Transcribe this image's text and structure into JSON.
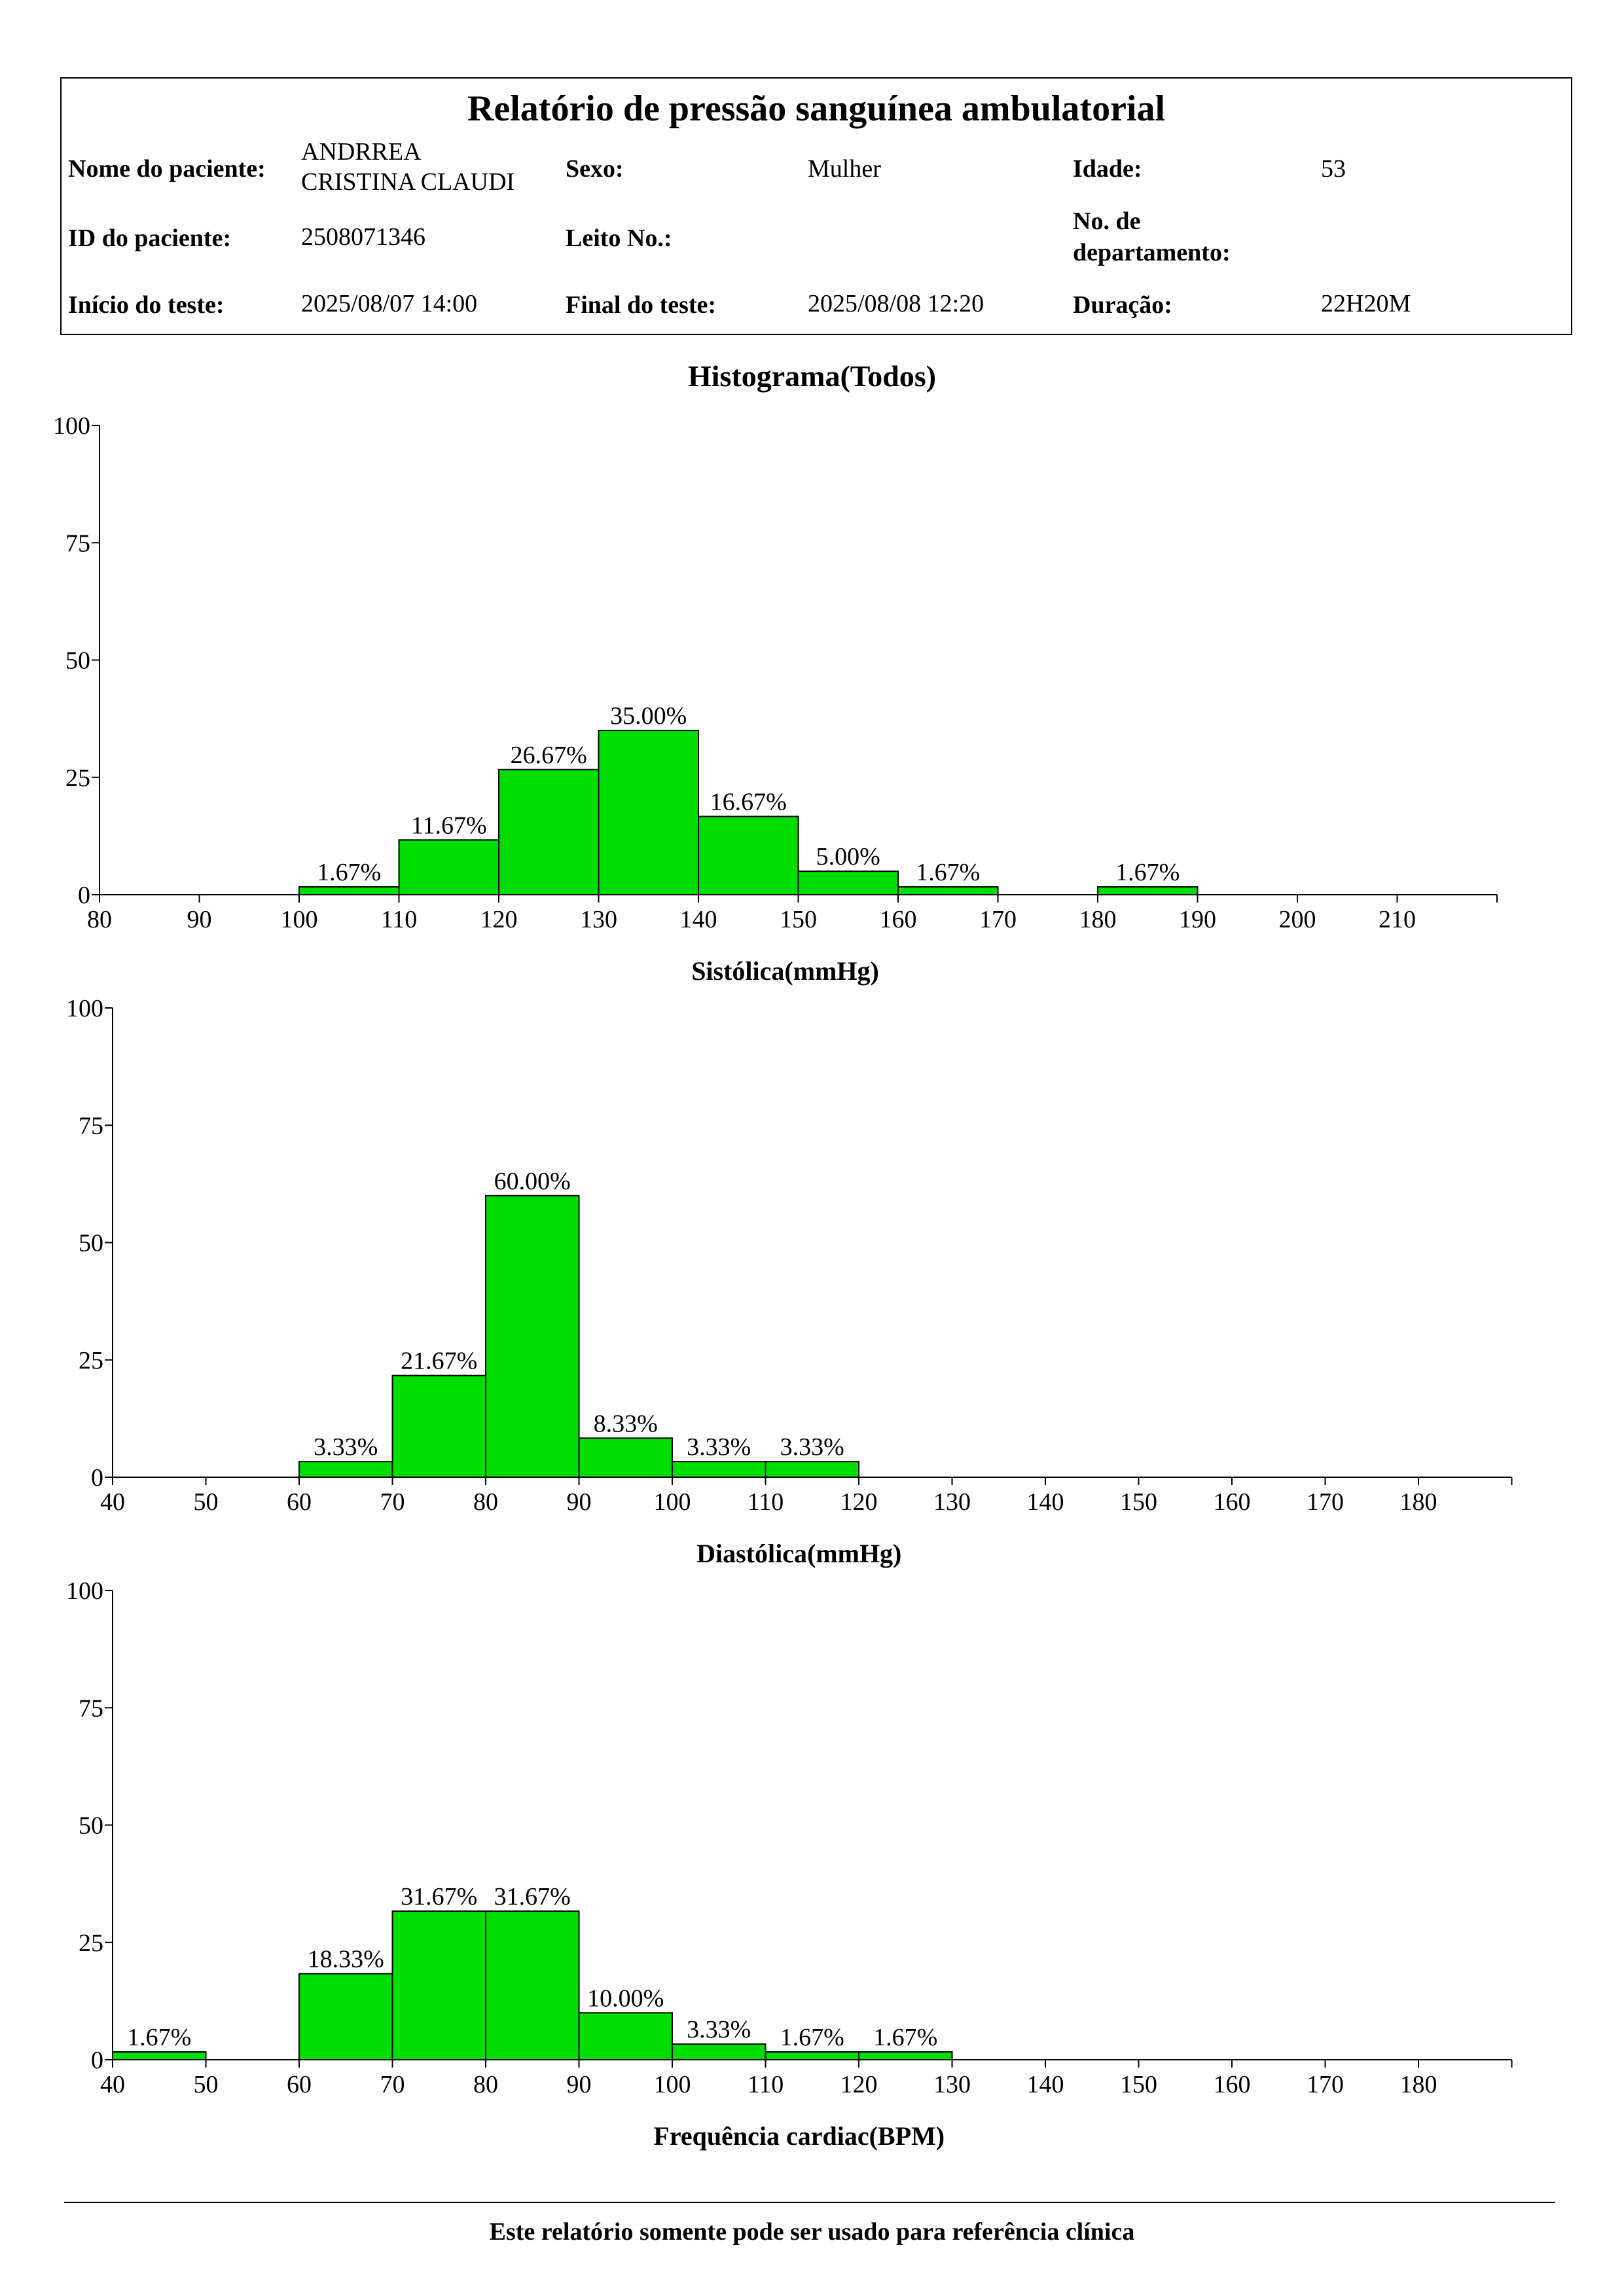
{
  "report": {
    "title": "Relatório de pressão sanguínea ambulatorial",
    "labels": {
      "patient_name": "Nome do paciente:",
      "sex": "Sexo:",
      "age": "Idade:",
      "patient_id": "ID do paciente:",
      "bed_no": "Leito No.:",
      "department_no_line1": "No. de",
      "department_no_line2": "departamento:",
      "test_start": "Início do teste:",
      "test_end": "Final do teste:",
      "duration": "Duração:"
    },
    "values": {
      "patient_name_line1": "ANDRREA",
      "patient_name_line2": "CRISTINA CLAUDI",
      "sex": "Mulher",
      "age": "53",
      "patient_id": "2508071346",
      "bed_no": "",
      "department_no": "",
      "test_start": "2025/08/07 14:00",
      "test_end": "2025/08/08 12:20",
      "duration": "22H20M"
    }
  },
  "histogram_title": "Histograma(Todos)",
  "footer": "Este relatório somente pode ser usado para referência clínica",
  "colors": {
    "bar_fill": "#00DD00",
    "bar_stroke": "#000000",
    "axis": "#000000"
  },
  "chart_data": [
    {
      "type": "bar",
      "title": "",
      "xlabel": "Sistólica(mmHg)",
      "ylabel": "",
      "ylim": [
        0,
        100
      ],
      "yticks": [
        0,
        25,
        50,
        75,
        100
      ],
      "xlim": [
        80,
        220
      ],
      "xticks": [
        80,
        90,
        100,
        110,
        120,
        130,
        140,
        150,
        160,
        170,
        180,
        190,
        200,
        210
      ],
      "bins": [
        {
          "start": 100,
          "end": 110,
          "value": 1.67,
          "label": "1.67%"
        },
        {
          "start": 110,
          "end": 120,
          "value": 11.67,
          "label": "11.67%"
        },
        {
          "start": 120,
          "end": 130,
          "value": 26.67,
          "label": "26.67%"
        },
        {
          "start": 130,
          "end": 140,
          "value": 35.0,
          "label": "35.00%"
        },
        {
          "start": 140,
          "end": 150,
          "value": 16.67,
          "label": "16.67%"
        },
        {
          "start": 150,
          "end": 160,
          "value": 5.0,
          "label": "5.00%"
        },
        {
          "start": 160,
          "end": 170,
          "value": 1.67,
          "label": "1.67%"
        },
        {
          "start": 180,
          "end": 190,
          "value": 1.67,
          "label": "1.67%"
        }
      ]
    },
    {
      "type": "bar",
      "title": "",
      "xlabel": "Diastólica(mmHg)",
      "ylabel": "",
      "ylim": [
        0,
        100
      ],
      "yticks": [
        0,
        25,
        50,
        75,
        100
      ],
      "xlim": [
        40,
        190
      ],
      "xticks": [
        40,
        50,
        60,
        70,
        80,
        90,
        100,
        110,
        120,
        130,
        140,
        150,
        160,
        170,
        180
      ],
      "bins": [
        {
          "start": 60,
          "end": 70,
          "value": 3.33,
          "label": "3.33%"
        },
        {
          "start": 70,
          "end": 80,
          "value": 21.67,
          "label": "21.67%"
        },
        {
          "start": 80,
          "end": 90,
          "value": 60.0,
          "label": "60.00%"
        },
        {
          "start": 90,
          "end": 100,
          "value": 8.33,
          "label": "8.33%"
        },
        {
          "start": 100,
          "end": 110,
          "value": 3.33,
          "label": "3.33%"
        },
        {
          "start": 110,
          "end": 120,
          "value": 3.33,
          "label": "3.33%"
        }
      ]
    },
    {
      "type": "bar",
      "title": "",
      "xlabel": "Frequência cardiac(BPM)",
      "ylabel": "",
      "ylim": [
        0,
        100
      ],
      "yticks": [
        0,
        25,
        50,
        75,
        100
      ],
      "xlim": [
        40,
        190
      ],
      "xticks": [
        40,
        50,
        60,
        70,
        80,
        90,
        100,
        110,
        120,
        130,
        140,
        150,
        160,
        170,
        180
      ],
      "bins": [
        {
          "start": 40,
          "end": 50,
          "value": 1.67,
          "label": "1.67%"
        },
        {
          "start": 60,
          "end": 70,
          "value": 18.33,
          "label": "18.33%"
        },
        {
          "start": 70,
          "end": 80,
          "value": 31.67,
          "label": "31.67%"
        },
        {
          "start": 80,
          "end": 90,
          "value": 31.67,
          "label": "31.67%"
        },
        {
          "start": 90,
          "end": 100,
          "value": 10.0,
          "label": "10.00%"
        },
        {
          "start": 100,
          "end": 110,
          "value": 3.33,
          "label": "3.33%"
        },
        {
          "start": 110,
          "end": 120,
          "value": 1.67,
          "label": "1.67%"
        },
        {
          "start": 120,
          "end": 130,
          "value": 1.67,
          "label": "1.67%"
        }
      ]
    }
  ]
}
